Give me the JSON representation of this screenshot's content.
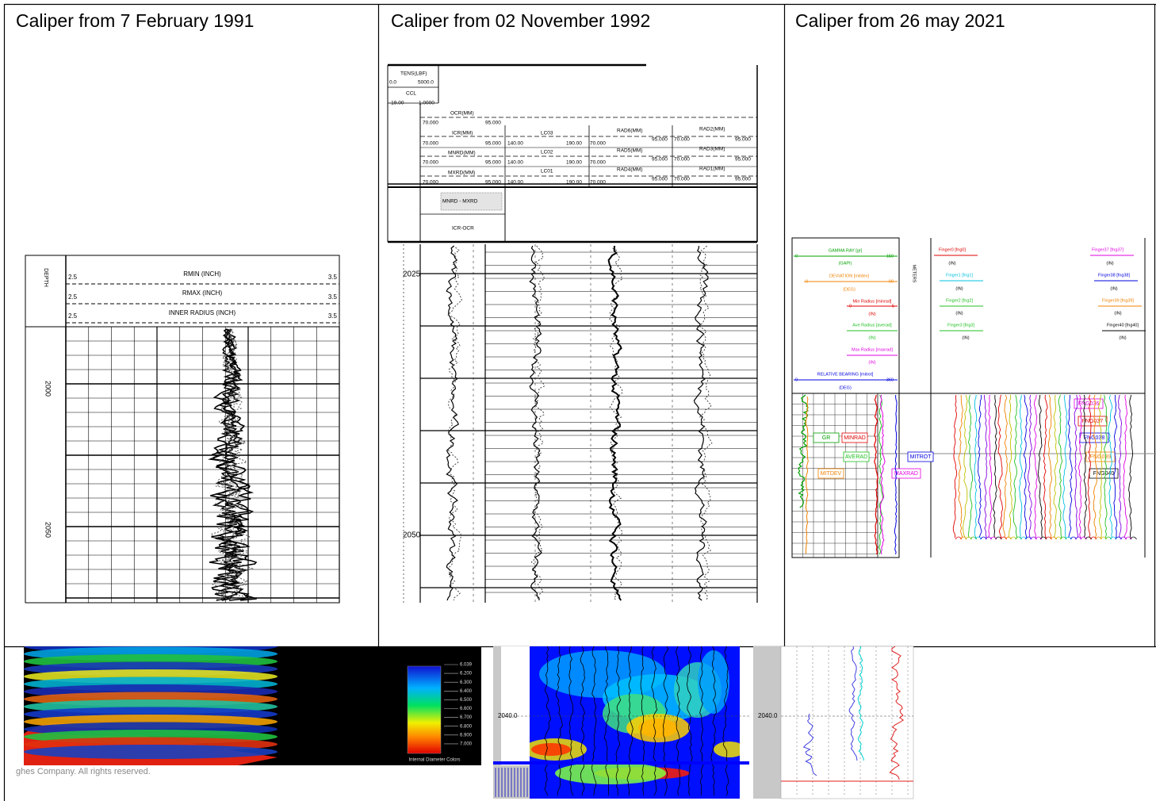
{
  "cells": [
    {
      "caption": "Caliper from 7 February 1991",
      "log_texts": [
        "DEPTH",
        "2.5",
        "RMIN (INCH)",
        "3.5",
        "2.5",
        "RMAX (INCH)",
        "3.5",
        "2.5",
        "INNER RADIUS (INCH)",
        "3.5",
        "2000",
        "2050"
      ]
    },
    {
      "caption": "Caliper from 02 November 1992",
      "log_texts": [
        "TENS(LBF)",
        "0.0",
        "5000.0",
        "CCL",
        "-19.00",
        "1.0000",
        "OCR(MM)",
        "70.000",
        "95.000",
        "ICR(MM)",
        "70.000",
        "95.000",
        "140.00",
        "LC03",
        "190.00",
        "70.000",
        "RAD6(MM)",
        "95.000",
        "70.000",
        "RAD2(MM)",
        "95.000",
        "MNRD(MM)",
        "70.000",
        "95.000",
        "140.00",
        "LC02",
        "190.00",
        "70.000",
        "RAD5(MM)",
        "95.000",
        "70.000",
        "RAD3(MM)",
        "95.000",
        "MXRD(MM)",
        "70.000",
        "95.000",
        "140.00",
        "LC01",
        "190.00",
        "70.000",
        "RAD4(MM)",
        "95.000",
        "70.000",
        "RAD1(MM)",
        "95.000",
        "MNRD - MXRD",
        "ICR-OCR",
        "2025",
        "2050"
      ]
    },
    {
      "caption": "Caliper from 26 may 2021",
      "log_texts": [
        "GAMMA RAY [gr]",
        "0",
        "150",
        "(GAPI)",
        "DEVIATION [mitdev]",
        "0",
        "90",
        "(DEG)",
        "Min Radius [minrad]",
        "0",
        "5",
        "(IN)",
        "Ave Radius [averad]",
        "(IN)",
        "Max Radius [maxrad]",
        "(IN)",
        "RELATIVE BEARING [mitrot]",
        "0",
        "360",
        "(DEG)",
        "METERS",
        "Finger0 [fng0]",
        "(IN)",
        "Finger1 [fng1]",
        "(IN)",
        "Finger2 [fng2]",
        "(IN)",
        "Finger3 [fng3]",
        "(IN)",
        "Finger37 [fng37]",
        "(IN)",
        "Finger38 [fng38]",
        "(IN)",
        "Finger39 [fng39]",
        "(IN)",
        "Finger40 [fng40]",
        "(IN)",
        "GR",
        "MINRAD",
        "AVERAD",
        "MITROT",
        "MITDEV",
        "MAXRAD",
        "FNG036",
        "FNG037",
        "FNG038",
        "FNG039",
        "FNG040"
      ]
    }
  ],
  "bottom": {
    "legend": [
      "6.039",
      "6.200",
      "6.300",
      "6.400",
      "6.500",
      "6.600",
      "6.700",
      "6.800",
      "6.900",
      "7.000"
    ],
    "legend_title": "Internal Diameter Colors",
    "copyright": "ghes Company. All rights reserved.",
    "depth_left": "2040.0",
    "depth_right": "2040.0"
  }
}
